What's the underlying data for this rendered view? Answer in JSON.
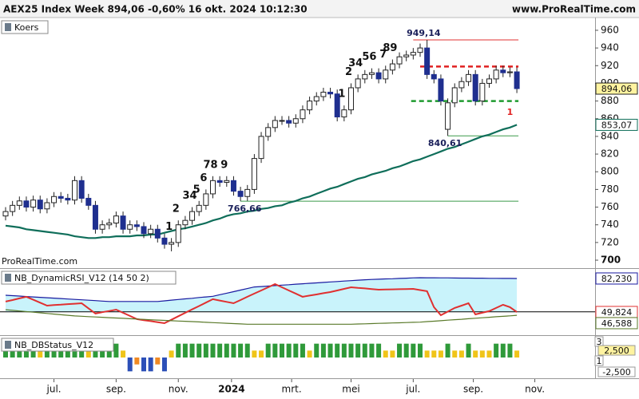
{
  "header": {
    "title": "AEX25 Index Week 894,06 -0,60% 16 okt. 2024 10:12:30",
    "site": "www.ProRealTime.com"
  },
  "chart_data": [
    {
      "type": "candlestick",
      "legend": "Koers",
      "watermark": "ProRealTime.com",
      "xlim": [
        -0.81,
        85.32
      ],
      "ylim": [
        691,
        972.6
      ],
      "yticks": [
        700,
        720,
        740,
        760,
        780,
        800,
        820,
        840,
        860,
        880,
        900,
        920,
        940,
        960
      ],
      "up_color": "#ffffff",
      "down_color": "#1f2f8f",
      "open": [
        750,
        755,
        762,
        767,
        760,
        768,
        758,
        765,
        772,
        770,
        768,
        790,
        770,
        762,
        735,
        740,
        742,
        750,
        735,
        740,
        738,
        730,
        735,
        725,
        718,
        720,
        740,
        745,
        755,
        762,
        775,
        790,
        788,
        790,
        778,
        772,
        780,
        815,
        840,
        850,
        858,
        858,
        855,
        860,
        870,
        880,
        885,
        890,
        888,
        862,
        870,
        895,
        905,
        910,
        912,
        905,
        915,
        922,
        930,
        932,
        935,
        940,
        910,
        905,
        848,
        878,
        895,
        902,
        910,
        880,
        900,
        905,
        915,
        912,
        913
      ],
      "high": [
        760,
        767,
        772,
        772,
        773,
        773,
        770,
        777,
        777,
        775,
        795,
        795,
        775,
        767,
        745,
        747,
        755,
        755,
        745,
        745,
        743,
        740,
        740,
        730,
        725,
        745,
        750,
        760,
        767,
        780,
        795,
        795,
        795,
        795,
        783,
        785,
        820,
        845,
        855,
        863,
        863,
        863,
        865,
        875,
        885,
        890,
        895,
        895,
        893,
        875,
        900,
        910,
        915,
        917,
        917,
        920,
        927,
        935,
        937,
        940,
        945,
        949.14,
        915,
        910,
        883,
        900,
        907,
        915,
        915,
        905,
        910,
        920,
        920,
        918,
        918
      ],
      "low": [
        745,
        750,
        757,
        755,
        755,
        753,
        753,
        760,
        765,
        763,
        763,
        765,
        757,
        730,
        730,
        735,
        737,
        730,
        730,
        733,
        725,
        725,
        720,
        713,
        710,
        715,
        735,
        740,
        750,
        757,
        770,
        783,
        783,
        773,
        766.66,
        767,
        775,
        810,
        835,
        845,
        853,
        850,
        850,
        855,
        865,
        875,
        880,
        883,
        857,
        857,
        865,
        890,
        900,
        905,
        900,
        900,
        910,
        917,
        925,
        927,
        930,
        905,
        900,
        875,
        840.61,
        873,
        890,
        897,
        875,
        875,
        895,
        900,
        907,
        907,
        889
      ],
      "close": [
        755,
        762,
        767,
        760,
        768,
        758,
        765,
        772,
        770,
        768,
        790,
        770,
        762,
        735,
        740,
        742,
        750,
        735,
        740,
        738,
        730,
        735,
        725,
        718,
        720,
        740,
        745,
        755,
        762,
        775,
        790,
        788,
        790,
        778,
        772,
        780,
        815,
        840,
        850,
        858,
        858,
        855,
        860,
        870,
        880,
        885,
        890,
        888,
        862,
        870,
        895,
        905,
        910,
        912,
        905,
        915,
        922,
        930,
        932,
        935,
        940,
        910,
        905,
        880,
        878,
        895,
        902,
        910,
        880,
        900,
        905,
        915,
        912,
        913,
        894.06
      ],
      "last_label": "894,06",
      "moving_average": {
        "color": "#0f6e5a",
        "end_label": "853,07",
        "values": [
          739,
          738,
          737,
          735,
          734,
          733,
          732,
          731,
          730,
          729,
          727,
          726,
          725,
          725,
          726,
          726,
          727,
          727,
          727,
          728,
          728,
          729,
          729,
          731,
          733,
          735,
          736,
          738,
          740,
          742,
          745,
          747,
          750,
          752,
          753,
          755,
          756,
          758,
          759,
          761,
          762,
          765,
          767,
          770,
          772,
          775,
          778,
          781,
          783,
          786,
          789,
          792,
          794,
          797,
          799,
          801,
          804,
          806,
          809,
          812,
          814,
          817,
          820,
          823,
          826,
          828,
          831,
          834,
          837,
          840,
          842,
          845,
          848,
          850,
          853.07
        ]
      },
      "hlines": [
        {
          "value": 949.14,
          "from": 59,
          "color": "#e03030",
          "style": "solid"
        },
        {
          "value": 919,
          "from": 60,
          "color": "#e02020",
          "style": "dashed"
        },
        {
          "value": 880,
          "from": 58.7,
          "color": "#1f9a2f",
          "style": "dashed"
        },
        {
          "value": 840.61,
          "from": 64,
          "color": "#3a9a4a",
          "style": "solid"
        },
        {
          "value": 766.66,
          "from": 34,
          "color": "#3a9a4a",
          "style": "solid"
        }
      ],
      "annotations": [
        {
          "index": 60.5,
          "value": 949.14,
          "label": "949,14",
          "position": "above"
        },
        {
          "index": 63.6,
          "value": 840.61,
          "label": "840,61",
          "position": "below"
        },
        {
          "index": 34.6,
          "value": 766.66,
          "label": "766,66",
          "position": "below"
        },
        {
          "index": 73,
          "value": 876,
          "label": "1",
          "position": "below",
          "color": "#e02020"
        }
      ],
      "counts": {
        "color": "#1515b0",
        "items": [
          {
            "index": 24,
            "label": "1"
          },
          {
            "index": 25,
            "label": "2"
          },
          {
            "index": 27,
            "label": "34"
          },
          {
            "index": 28,
            "label": "5"
          },
          {
            "index": 29,
            "label": "6"
          },
          {
            "index": 30,
            "label": "78"
          },
          {
            "index": 32,
            "label": "9"
          },
          {
            "index": 49,
            "label": "1"
          },
          {
            "index": 50,
            "label": "2"
          },
          {
            "index": 51,
            "label": "34"
          },
          {
            "index": 53,
            "label": "56"
          },
          {
            "index": 55,
            "label": "7"
          },
          {
            "index": 56,
            "label": "89"
          }
        ]
      }
    },
    {
      "type": "line",
      "legend": "NB_DynamicRSI_V12 (14 50 2)",
      "xlim": [
        -0.81,
        85.32
      ],
      "ylim": [
        27.4,
        90.7
      ],
      "reference_line": 50,
      "fill_color": "#c9f3fb",
      "series": [
        {
          "color": "#1a1aa0",
          "end_label": "82,230",
          "values": [
            66,
            65.6,
            65.2,
            64.8,
            64.4,
            64,
            63.6,
            63.2,
            62.8,
            62.4,
            62,
            61.6,
            61.2,
            60.8,
            60.4,
            60,
            60,
            60,
            60,
            60,
            60,
            60,
            60,
            60.6,
            61.3,
            61.9,
            62.5,
            63.1,
            63.8,
            64.4,
            65,
            66.5,
            68,
            69.5,
            71,
            72.5,
            74,
            74.4,
            74.9,
            75.3,
            75.8,
            76.2,
            76.7,
            77.1,
            77.6,
            78,
            78.4,
            78.9,
            79.3,
            79.7,
            80.1,
            80.6,
            81,
            81.3,
            81.5,
            81.8,
            82,
            82.3,
            82.5,
            82.8,
            83,
            82.9,
            82.9,
            82.8,
            82.8,
            82.7,
            82.6,
            82.6,
            82.5,
            82.5,
            82.4,
            82.4,
            82.3,
            82.3,
            82.23
          ]
        },
        {
          "color": "#e03030",
          "end_label": "49,824",
          "values": [
            59.9,
            61.4,
            63.0,
            64.5,
            61.7,
            58.8,
            56.0,
            56.5,
            56.9,
            57.4,
            57.8,
            58.3,
            53.3,
            48.3,
            49.6,
            50.8,
            52.1,
            49.0,
            46.0,
            42.9,
            41.9,
            41.0,
            40.0,
            39.0,
            42.3,
            45.7,
            49.0,
            52.3,
            55.6,
            58.9,
            62.2,
            60.9,
            59.6,
            58.3,
            61.4,
            64.5,
            67.6,
            70.6,
            73.7,
            76.8,
            73.7,
            70.6,
            67.6,
            64.5,
            65.7,
            66.8,
            68.0,
            69.1,
            70.6,
            72.2,
            73.7,
            73.1,
            72.6,
            72.0,
            71.4,
            71.6,
            71.7,
            71.9,
            72.0,
            72.2,
            71.0,
            69.9,
            54.5,
            46.7,
            50.2,
            53.7,
            56.0,
            58.3,
            47.5,
            49.1,
            50.6,
            53.7,
            56.8,
            54.5,
            49.824
          ]
        },
        {
          "color": "#5a7a2a",
          "end_label": "46,588",
          "values": [
            52,
            51.4,
            50.8,
            50.2,
            49.6,
            49,
            48.4,
            47.8,
            47.2,
            46.6,
            46,
            45.7,
            45.3,
            45,
            44.7,
            44.3,
            44,
            43.7,
            43.3,
            43,
            42.7,
            42.3,
            42,
            41.7,
            41.4,
            41.1,
            40.8,
            40.5,
            40.2,
            39.8,
            39.5,
            39.2,
            38.9,
            38.6,
            38.3,
            38,
            38,
            38,
            38,
            38,
            38,
            38,
            38,
            38,
            38,
            38,
            38,
            38,
            38,
            38,
            38,
            38.2,
            38.4,
            38.6,
            38.8,
            39,
            39.2,
            39.4,
            39.6,
            39.8,
            40,
            40.5,
            40.9,
            41.4,
            41.9,
            42.4,
            42.8,
            43.3,
            43.8,
            44.2,
            44.7,
            45.2,
            45.6,
            46.1,
            46.588
          ]
        }
      ]
    },
    {
      "type": "bar",
      "legend": "NB_DBStatus_V12",
      "xlim": [
        -0.81,
        85.32
      ],
      "ylim": [
        -3,
        3
      ],
      "right_labels": [
        "3",
        "2,500",
        "1",
        "-2,500"
      ],
      "values": [
        2,
        2,
        2,
        2,
        2,
        1,
        2,
        2,
        2,
        2,
        2,
        2,
        1,
        2,
        2,
        2,
        2,
        1,
        -2,
        -1,
        -2,
        -2,
        -1,
        -2,
        1,
        2,
        2,
        2,
        2,
        2,
        2,
        2,
        2,
        2,
        2,
        2,
        1,
        1,
        2,
        2,
        2,
        2,
        2,
        2,
        1,
        2,
        2,
        2,
        2,
        2,
        2,
        2,
        2,
        2,
        2,
        1,
        1,
        2,
        2,
        2,
        2,
        1,
        1,
        1,
        2,
        1,
        1,
        2,
        1,
        1,
        1,
        2,
        2,
        2,
        1
      ],
      "colors": [
        "#2f9a3a",
        "#2f9a3a",
        "#2f9a3a",
        "#2f9a3a",
        "#2f9a3a",
        "#f0c419",
        "#2f9a3a",
        "#2f9a3a",
        "#2f9a3a",
        "#2f9a3a",
        "#2f9a3a",
        "#2f9a3a",
        "#f0c419",
        "#2f9a3a",
        "#2f9a3a",
        "#2f9a3a",
        "#2f9a3a",
        "#f0c419",
        "#2c4fb8",
        "#f08a24",
        "#2c4fb8",
        "#2c4fb8",
        "#f08a24",
        "#2c4fb8",
        "#f0c419",
        "#2f9a3a",
        "#2f9a3a",
        "#2f9a3a",
        "#2f9a3a",
        "#2f9a3a",
        "#2f9a3a",
        "#2f9a3a",
        "#2f9a3a",
        "#2f9a3a",
        "#2f9a3a",
        "#2f9a3a",
        "#f0c419",
        "#f0c419",
        "#2f9a3a",
        "#2f9a3a",
        "#2f9a3a",
        "#2f9a3a",
        "#2f9a3a",
        "#2f9a3a",
        "#f0c419",
        "#2f9a3a",
        "#2f9a3a",
        "#2f9a3a",
        "#2f9a3a",
        "#2f9a3a",
        "#2f9a3a",
        "#2f9a3a",
        "#2f9a3a",
        "#2f9a3a",
        "#2f9a3a",
        "#f0c419",
        "#f0c419",
        "#2f9a3a",
        "#2f9a3a",
        "#2f9a3a",
        "#2f9a3a",
        "#f0c419",
        "#f0c419",
        "#f0c419",
        "#2f9a3a",
        "#f0c419",
        "#f0c419",
        "#2f9a3a",
        "#f0c419",
        "#f0c419",
        "#f0c419",
        "#2f9a3a",
        "#2f9a3a",
        "#2f9a3a",
        "#f0c419"
      ],
      "xticks": [
        {
          "value": 7,
          "label": "jul."
        },
        {
          "value": 16,
          "label": "sep."
        },
        {
          "value": 25,
          "label": "nov."
        },
        {
          "value": 32.7,
          "label": "2024"
        },
        {
          "value": 41.4,
          "label": "mrt."
        },
        {
          "value": 50,
          "label": "mei"
        },
        {
          "value": 59,
          "label": "jul."
        },
        {
          "value": 67.7,
          "label": "sep."
        },
        {
          "value": 76.6,
          "label": "nov."
        }
      ]
    }
  ]
}
